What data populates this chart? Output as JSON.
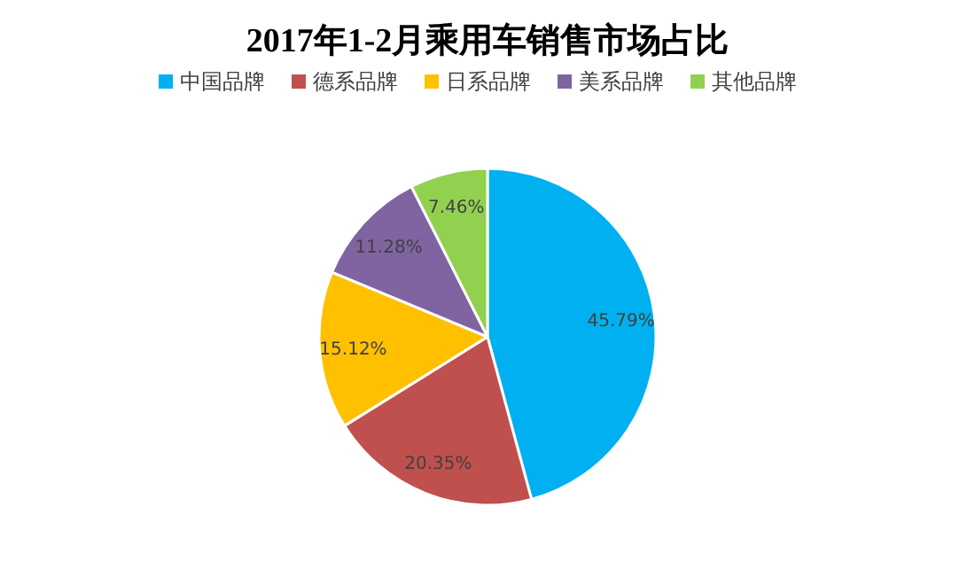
{
  "chart_data": {
    "type": "pie",
    "title": "2017年1-2月乘用车销售市场占比",
    "categories": [
      "中国品牌",
      "德系品牌",
      "日系品牌",
      "美系品牌",
      "其他品牌"
    ],
    "values": [
      45.79,
      20.35,
      15.12,
      11.28,
      7.46
    ],
    "colors": [
      "#00b0f0",
      "#c0504d",
      "#ffc000",
      "#8064a2",
      "#92d050"
    ],
    "value_labels": [
      "45.79%",
      "20.35%",
      "15.12%",
      "11.28%",
      "7.46%"
    ],
    "legend": "top"
  }
}
